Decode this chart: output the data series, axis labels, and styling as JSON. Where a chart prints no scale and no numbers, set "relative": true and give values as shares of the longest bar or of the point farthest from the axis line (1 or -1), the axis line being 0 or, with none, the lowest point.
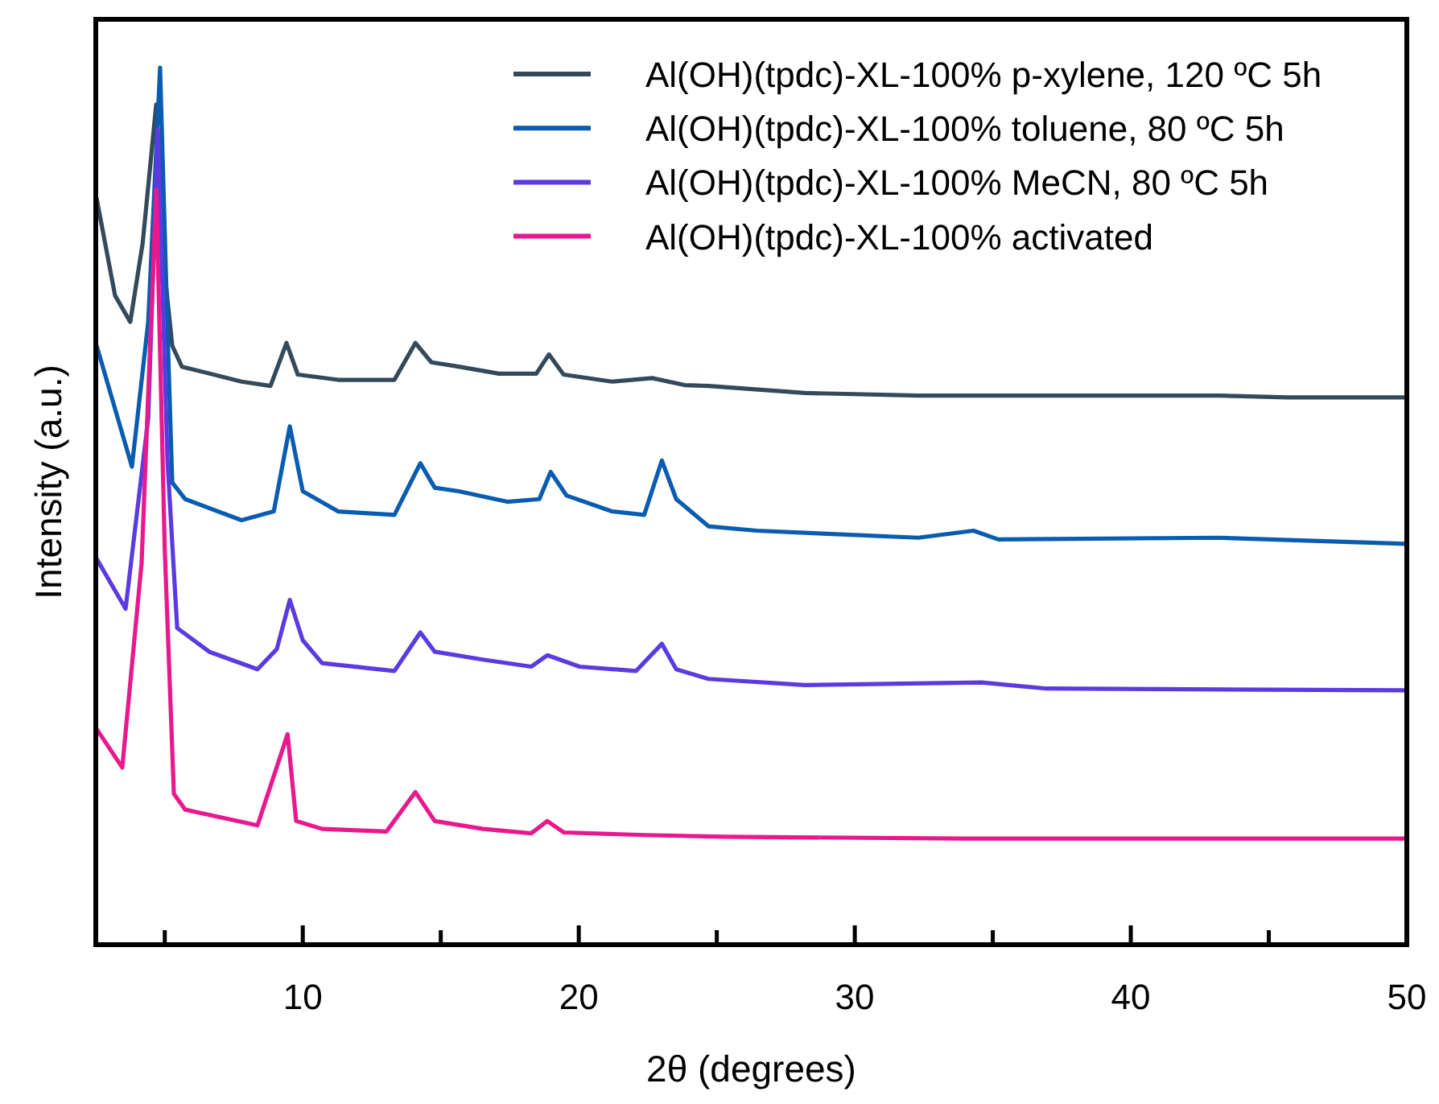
{
  "chart_data": {
    "type": "line",
    "relative": true,
    "xlabel": "2θ (degrees)",
    "ylabel": "Intensity (a.u.)",
    "xlim": [
      2.5,
      50
    ],
    "xticks": [
      {
        "value": 5,
        "label": null
      },
      10,
      {
        "value": 15,
        "label": null
      },
      20,
      {
        "value": 25,
        "label": null
      },
      30,
      {
        "value": 35,
        "label": null
      },
      40,
      {
        "value": 45,
        "label": null
      },
      50
    ],
    "tick_labels": "x",
    "legend": "top right",
    "marker": "none",
    "line_style": "solid",
    "grid": false,
    "series": [
      {
        "name": "Al(OH)(tpdc)-XL-100% p-xylene, 120 ºC 5h",
        "color": "#34495a",
        "x": [
          2.53,
          3.2,
          3.75,
          4.2,
          4.69,
          5.05,
          5.27,
          5.62,
          7.78,
          8.83,
          9.41,
          9.82,
          11.28,
          13.32,
          14.08,
          14.66,
          15.65,
          17.11,
          18.46,
          18.92,
          19.45,
          21.2,
          22.66,
          23.83,
          24.7,
          28.2,
          32.3,
          36.95,
          43.2,
          45.7,
          50
        ],
        "values": [
          0.851,
          0.74,
          0.71,
          0.8,
          0.958,
          0.75,
          0.683,
          0.659,
          0.642,
          0.637,
          0.686,
          0.65,
          0.644,
          0.644,
          0.686,
          0.664,
          0.659,
          0.651,
          0.651,
          0.673,
          0.65,
          0.642,
          0.646,
          0.638,
          0.637,
          0.629,
          0.626,
          0.626,
          0.626,
          0.624,
          0.624
        ]
      },
      {
        "name": "Al(OH)(tpdc)-XL-100% toluene, 80 ºC 5h",
        "color": "#0a5cb0",
        "x": [
          2.53,
          3.81,
          4.4,
          4.83,
          5.1,
          5.27,
          5.74,
          7.78,
          8.95,
          9.53,
          10.0,
          11.28,
          13.32,
          14.26,
          14.78,
          15.65,
          17.41,
          18.57,
          18.98,
          19.56,
          21.2,
          22.37,
          23.01,
          23.53,
          24.7,
          26.45,
          32.3,
          34.3,
          35.2,
          43.2,
          50
        ],
        "values": [
          0.683,
          0.545,
          0.71,
          1.0,
          0.7,
          0.527,
          0.508,
          0.484,
          0.494,
          0.591,
          0.517,
          0.494,
          0.49,
          0.549,
          0.521,
          0.517,
          0.505,
          0.508,
          0.539,
          0.512,
          0.494,
          0.49,
          0.552,
          0.508,
          0.477,
          0.472,
          0.464,
          0.472,
          0.462,
          0.464,
          0.457
        ]
      },
      {
        "name": "Al(OH)(tpdc)-XL-100% MeCN, 80 ºC 5h",
        "color": "#5b3be0",
        "x": [
          2.53,
          3.58,
          4.4,
          4.75,
          5.1,
          5.45,
          6.61,
          8.36,
          9.06,
          9.53,
          10.0,
          10.7,
          13.32,
          14.26,
          14.78,
          16.53,
          18.28,
          18.86,
          20.03,
          22.07,
          23.01,
          23.53,
          24.7,
          28.2,
          34.6,
          36.95,
          50
        ],
        "values": [
          0.44,
          0.383,
          0.6,
          0.93,
          0.55,
          0.361,
          0.334,
          0.314,
          0.337,
          0.393,
          0.347,
          0.321,
          0.312,
          0.356,
          0.334,
          0.325,
          0.317,
          0.33,
          0.317,
          0.312,
          0.343,
          0.314,
          0.303,
          0.296,
          0.299,
          0.292,
          0.29
        ]
      },
      {
        "name": "Al(OH)(tpdc)-XL-100% activated",
        "color": "#e8198c",
        "x": [
          2.53,
          3.46,
          4.16,
          4.69,
          5.0,
          5.33,
          5.74,
          8.36,
          9.45,
          9.76,
          10.7,
          13.03,
          14.08,
          14.78,
          16.53,
          18.28,
          18.86,
          19.45,
          22.37,
          25.28,
          34.0,
          50
        ],
        "values": [
          0.246,
          0.202,
          0.435,
          0.861,
          0.45,
          0.172,
          0.154,
          0.136,
          0.24,
          0.141,
          0.132,
          0.129,
          0.174,
          0.141,
          0.132,
          0.127,
          0.141,
          0.128,
          0.125,
          0.123,
          0.121,
          0.121
        ]
      }
    ]
  }
}
